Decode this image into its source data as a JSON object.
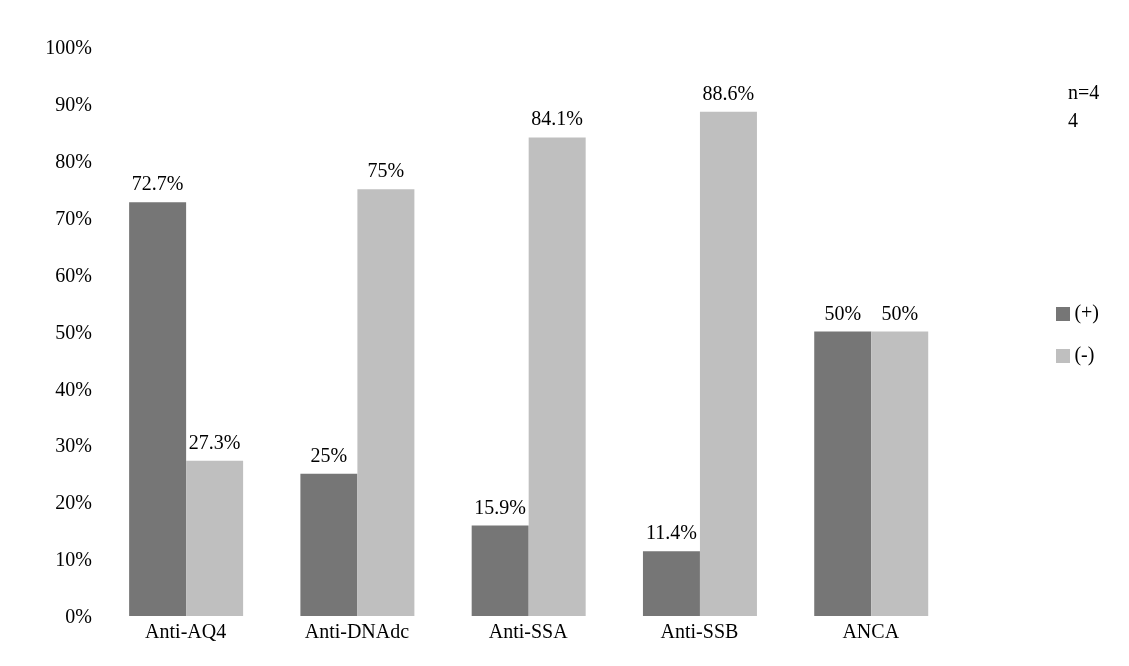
{
  "chart_data": {
    "type": "bar",
    "categories": [
      "Anti-AQ4",
      "Anti-DNAdc",
      "Anti-SSA",
      "Anti-SSB",
      "ANCA"
    ],
    "series": [
      {
        "name": "(+)",
        "color": "#767676",
        "values": [
          72.7,
          25,
          15.9,
          11.4,
          50
        ],
        "value_labels": [
          "72.7%",
          "25%",
          "15.9%",
          "11.4%",
          "50%"
        ]
      },
      {
        "name": "(-)",
        "color": "#bfbfbf",
        "values": [
          27.3,
          75,
          84.1,
          88.6,
          50
        ],
        "value_labels": [
          "27.3%",
          "75%",
          "84.1%",
          "88.6%",
          "50%"
        ]
      }
    ],
    "ylim": [
      0,
      100
    ],
    "yticks": [
      {
        "value": 0,
        "label": "0%"
      },
      {
        "value": 10,
        "label": "10%"
      },
      {
        "value": 20,
        "label": "20%"
      },
      {
        "value": 30,
        "label": "30%"
      },
      {
        "value": 40,
        "label": "40%"
      },
      {
        "value": 50,
        "label": "50%"
      },
      {
        "value": 60,
        "label": "60%"
      },
      {
        "value": 70,
        "label": "70%"
      },
      {
        "value": 80,
        "label": "80%"
      },
      {
        "value": 90,
        "label": "90%"
      },
      {
        "value": 100,
        "label": "100%"
      }
    ],
    "grid": false,
    "legend": "right",
    "annotations": [
      "n=44"
    ]
  }
}
